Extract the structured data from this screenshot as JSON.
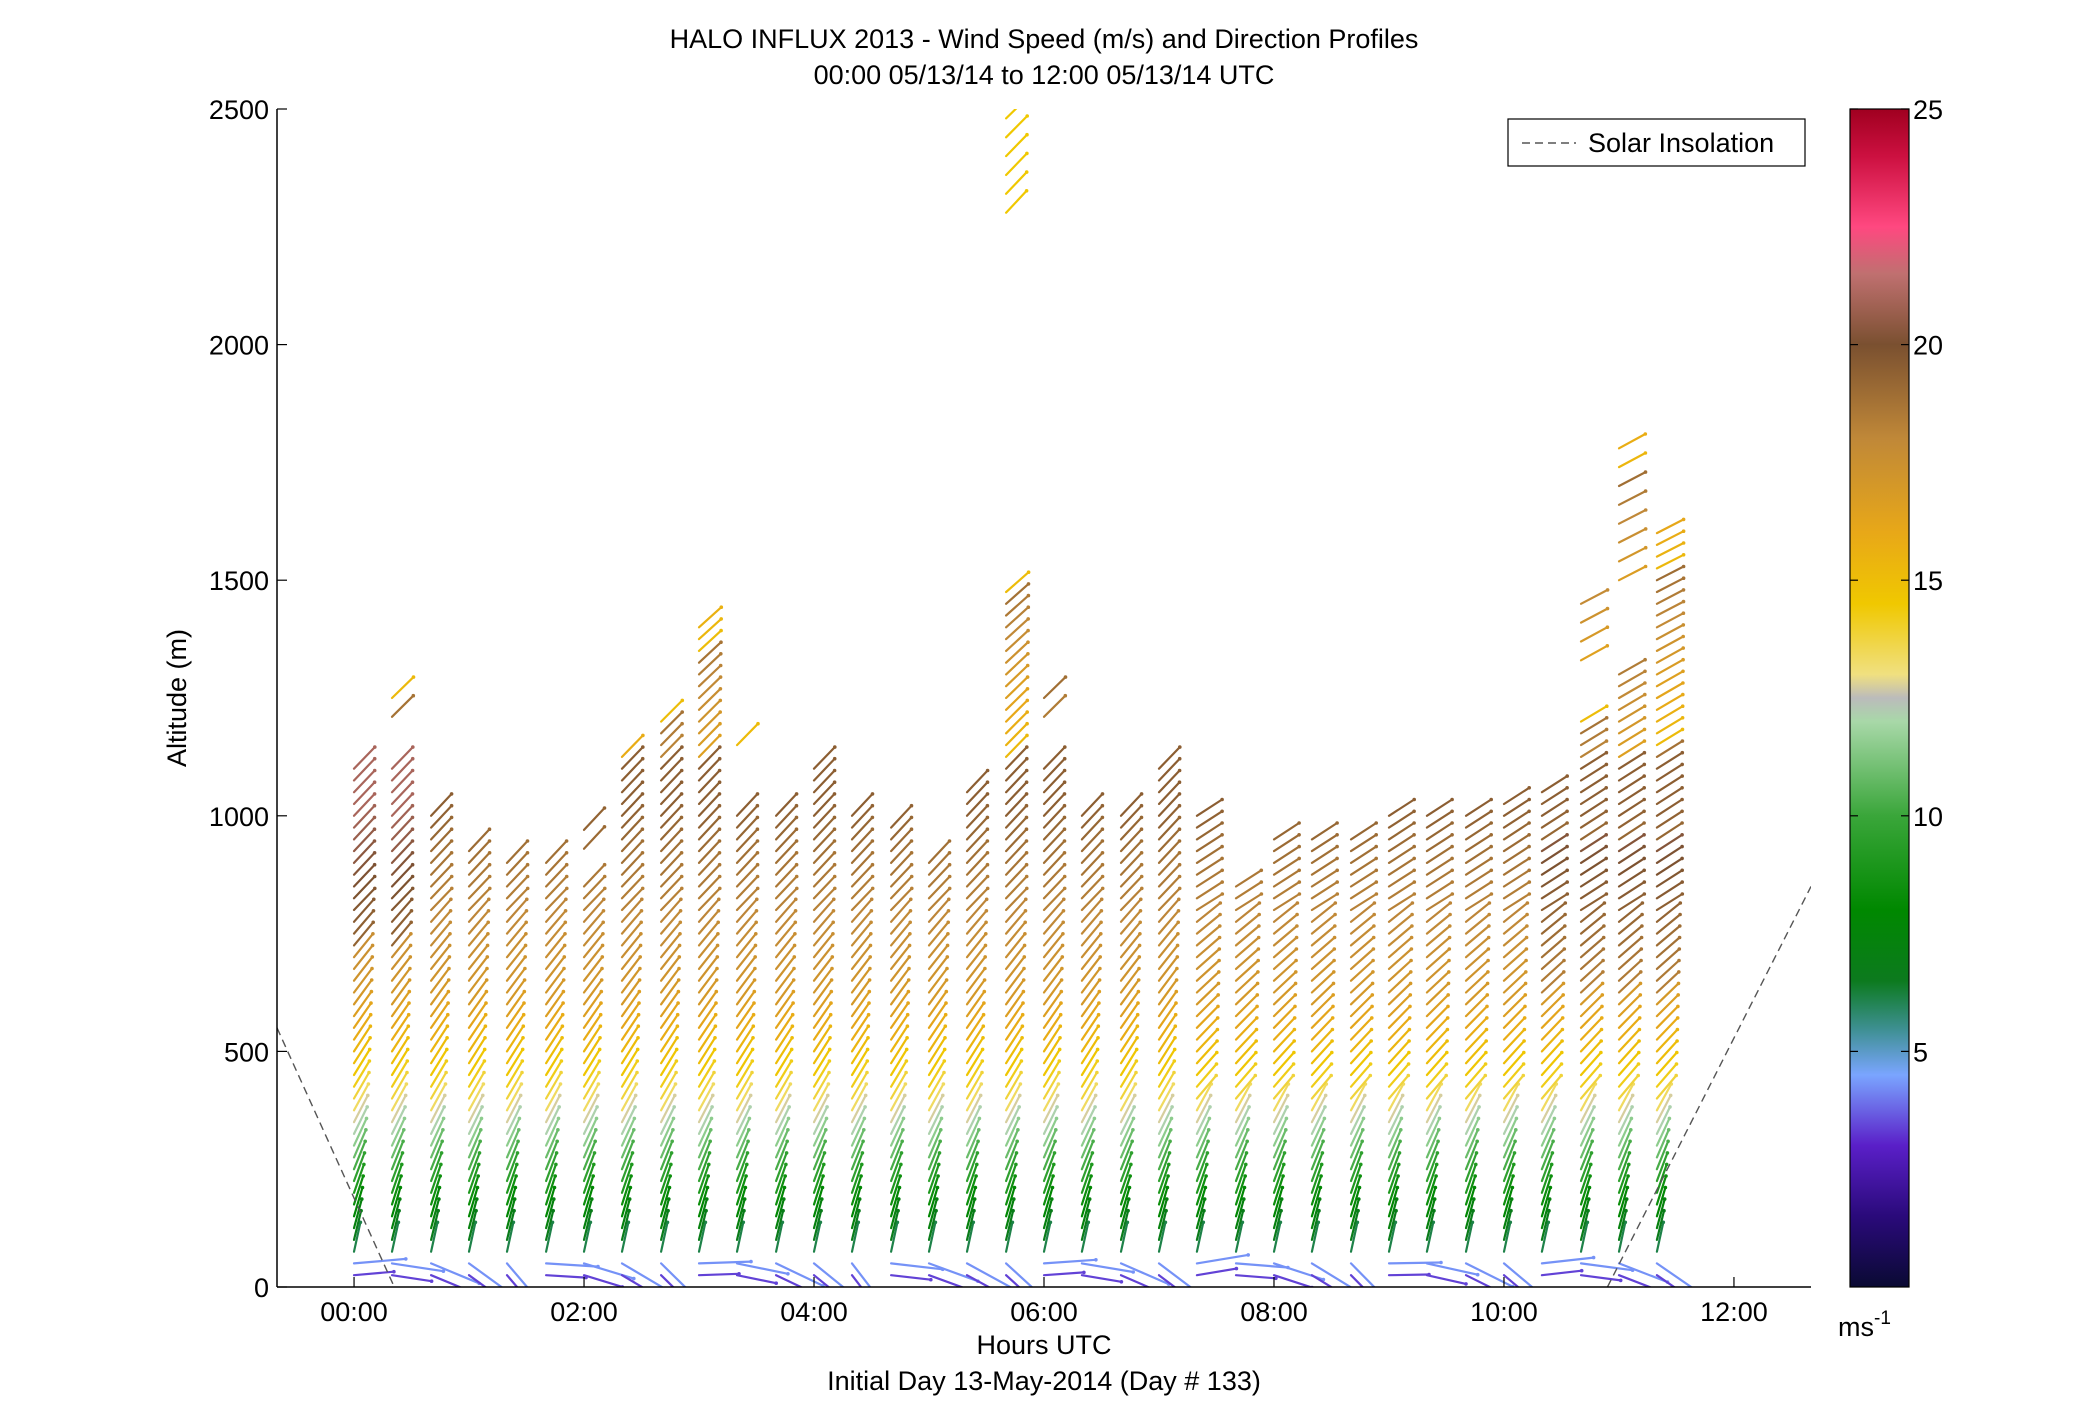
{
  "chart_data": {
    "type": "wind-barb-profile",
    "title": "HALO INFLUX 2013 - Wind Speed (m/s) and Direction Profiles",
    "subtitle": "00:00 05/13/14 to 12:00 05/13/14  UTC",
    "xlabel": "Hours UTC",
    "xlabel2": "Initial Day 13-May-2014 (Day # 133)",
    "ylabel": "Altitude (m)",
    "xlim": [
      -0.67,
      12.67
    ],
    "ylim": [
      0,
      2500
    ],
    "x_ticks": [
      0,
      2,
      4,
      6,
      8,
      10,
      12
    ],
    "x_tick_labels": [
      "00:00",
      "02:00",
      "04:00",
      "06:00",
      "08:00",
      "10:00",
      "12:00"
    ],
    "y_ticks": [
      0,
      500,
      1000,
      1500,
      2000,
      2500
    ],
    "y_tick_labels": [
      "0",
      "500",
      "1000",
      "1500",
      "2000",
      "2500"
    ],
    "legend": {
      "placement": "top-right",
      "entries": [
        "Solar Insolation"
      ]
    },
    "solar_insolation_line": {
      "color": "#555555",
      "style": "dashed",
      "segments": [
        [
          [
            -0.67,
            550
          ],
          [
            0.35,
            0
          ]
        ],
        [
          [
            10.9,
            0
          ],
          [
            12.67,
            850
          ]
        ]
      ]
    },
    "colorbar": {
      "range": [
        0,
        25
      ],
      "ticks": [
        5,
        10,
        15,
        20,
        25
      ],
      "tick_labels": [
        "5",
        "10",
        "15",
        "20",
        "25"
      ],
      "unit_label": "ms",
      "unit_exponent": "-1",
      "stops": [
        [
          0,
          "#0a0a33"
        ],
        [
          1.5,
          "#2a0a7a"
        ],
        [
          3,
          "#5a1fc8"
        ],
        [
          4.5,
          "#7aa5ff"
        ],
        [
          5.5,
          "#3c8f8f"
        ],
        [
          6.5,
          "#0c7a1e"
        ],
        [
          8,
          "#008800"
        ],
        [
          10,
          "#3aa63a"
        ],
        [
          12,
          "#a8d8a8"
        ],
        [
          12.5,
          "#bbbbbb"
        ],
        [
          13,
          "#f0e080"
        ],
        [
          14.5,
          "#f0c800"
        ],
        [
          16,
          "#e8a818"
        ],
        [
          18,
          "#c08838"
        ],
        [
          20,
          "#7a5030"
        ],
        [
          21.5,
          "#c07070"
        ],
        [
          22.5,
          "#ff4880"
        ],
        [
          24,
          "#cc1040"
        ],
        [
          25,
          "#a00020"
        ]
      ]
    },
    "profiles": [
      {
        "t": 0.0,
        "zmax": 1100
      },
      {
        "t": 0.33,
        "zmax": 1100,
        "extra": [
          1210,
          1250
        ]
      },
      {
        "t": 0.67,
        "zmax": 1020
      },
      {
        "t": 1.0,
        "zmax": 940
      },
      {
        "t": 1.33,
        "zmax": 900
      },
      {
        "t": 1.67,
        "zmax": 900
      },
      {
        "t": 2.0,
        "zmax": 860,
        "extra": [
          930,
          970
        ]
      },
      {
        "t": 2.33,
        "zmax": 1130
      },
      {
        "t": 2.67,
        "zmax": 1200
      },
      {
        "t": 3.0,
        "zmax": 1400
      },
      {
        "t": 3.33,
        "zmax": 1010,
        "extra": [
          1150,
          1170
        ]
      },
      {
        "t": 3.67,
        "zmax": 1010
      },
      {
        "t": 4.0,
        "zmax": 1100
      },
      {
        "t": 4.33,
        "zmax": 1010
      },
      {
        "t": 4.67,
        "zmax": 990
      },
      {
        "t": 5.0,
        "zmax": 900
      },
      {
        "t": 5.33,
        "zmax": 1050
      },
      {
        "t": 5.67,
        "zmax": 1490,
        "extra": [
          2280,
          2500
        ]
      },
      {
        "t": 6.0,
        "zmax": 1100,
        "extra": [
          1210,
          1250
        ]
      },
      {
        "t": 6.33,
        "zmax": 1010
      },
      {
        "t": 6.67,
        "zmax": 1010
      },
      {
        "t": 7.0,
        "zmax": 1100
      },
      {
        "t": 7.33,
        "zmax": 1000
      },
      {
        "t": 7.67,
        "zmax": 870
      },
      {
        "t": 8.0,
        "zmax": 970
      },
      {
        "t": 8.33,
        "zmax": 970
      },
      {
        "t": 8.67,
        "zmax": 970
      },
      {
        "t": 9.0,
        "zmax": 1010
      },
      {
        "t": 9.33,
        "zmax": 1010
      },
      {
        "t": 9.67,
        "zmax": 1010
      },
      {
        "t": 10.0,
        "zmax": 1040
      },
      {
        "t": 10.33,
        "zmax": 1060
      },
      {
        "t": 10.67,
        "zmax": 1200,
        "extra": [
          1330,
          1450
        ]
      },
      {
        "t": 11.0,
        "zmax": 1300,
        "extra": [
          1500,
          1780
        ]
      },
      {
        "t": 11.33,
        "zmax": 1620
      }
    ]
  }
}
